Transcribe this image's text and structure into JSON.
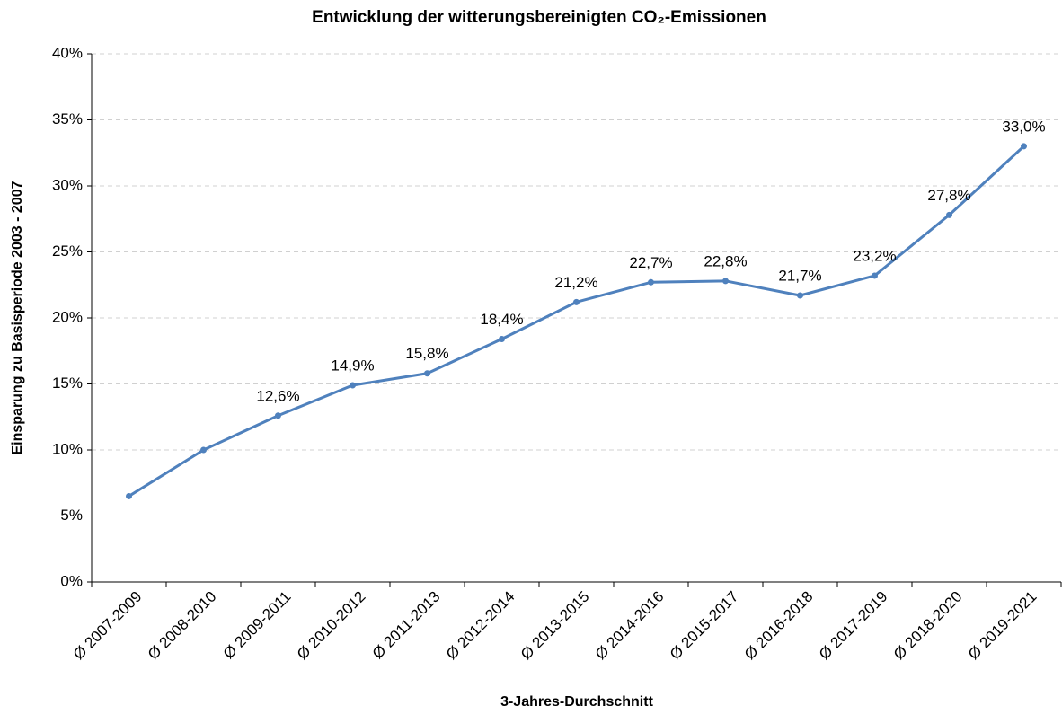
{
  "chart_data": {
    "type": "line",
    "title": "Entwicklung der witterungsbereinigten CO₂-Emissionen",
    "x_label": "3-Jahres-Durchschnitt",
    "y_label": "Einsparung zu Basisperiode 2003 - 2007",
    "categories": [
      "Ø 2007-2009",
      "Ø 2008-2010",
      "Ø 2009-2011",
      "Ø 2010-2012",
      "Ø 2011-2013",
      "Ø 2012-2014",
      "Ø 2013-2015",
      "Ø 2014-2016",
      "Ø 2015-2017",
      "Ø 2016-2018",
      "Ø 2017-2019",
      "Ø 2018-2020",
      "Ø 2019-2021"
    ],
    "values": [
      6.5,
      10.0,
      12.6,
      14.9,
      15.8,
      18.4,
      21.2,
      22.7,
      22.8,
      21.7,
      23.2,
      27.8,
      33.0
    ],
    "value_labels": [
      null,
      null,
      "12,6%",
      "14,9%",
      "15,8%",
      "18,4%",
      "21,2%",
      "22,7%",
      "22,8%",
      "21,7%",
      "23,2%",
      "27,8%",
      "33,0%"
    ],
    "color": "#4f81bd",
    "ylim": [
      0,
      40
    ],
    "yticks": [
      {
        "value": 0,
        "label": "0%"
      },
      {
        "value": 5,
        "label": "5%"
      },
      {
        "value": 10,
        "label": "10%"
      },
      {
        "value": 15,
        "label": "15%"
      },
      {
        "value": 20,
        "label": "20%"
      },
      {
        "value": 25,
        "label": "25%"
      },
      {
        "value": 30,
        "label": "30%"
      },
      {
        "value": 35,
        "label": "35%"
      },
      {
        "value": 40,
        "label": "40%"
      }
    ],
    "grid": true
  }
}
